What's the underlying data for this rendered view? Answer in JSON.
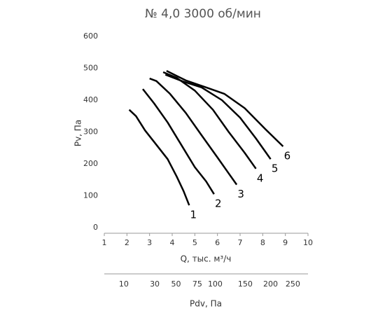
{
  "chart_data": {
    "type": "line",
    "title": "№ 4,0 3000 об/мин",
    "xlabel": "Q, тыс. м³/ч",
    "ylabel": "Pv, Па",
    "x2label": "Pdv, Па",
    "xlim": [
      1,
      10
    ],
    "xticks": [
      1,
      2,
      3,
      4,
      5,
      6,
      7,
      8,
      9,
      10
    ],
    "ylim": [
      0,
      600
    ],
    "yticks": [
      0,
      100,
      200,
      300,
      400,
      500,
      600
    ],
    "x2scale": "sqrt",
    "x2lim": [
      2.9,
      287
    ],
    "x2ticks": [
      10,
      30,
      50,
      75,
      100,
      150,
      200,
      250
    ],
    "grid": false,
    "series": [
      {
        "name": "1",
        "color": "#000000",
        "x": [
          2.1,
          2.4,
          2.8,
          3.3,
          3.8,
          4.2,
          4.5,
          4.75
        ],
        "values": [
          370,
          350,
          305,
          260,
          215,
          160,
          115,
          70
        ]
      },
      {
        "name": "2",
        "color": "#000000",
        "x": [
          2.7,
          3.2,
          3.8,
          4.4,
          5.0,
          5.5,
          5.85
        ],
        "values": [
          435,
          390,
          330,
          260,
          190,
          145,
          105
        ]
      },
      {
        "name": "3",
        "color": "#000000",
        "x": [
          3.0,
          3.3,
          3.9,
          4.6,
          5.3,
          6.0,
          6.5,
          6.85
        ],
        "values": [
          468,
          460,
          420,
          360,
          290,
          220,
          170,
          135
        ]
      },
      {
        "name": "4",
        "color": "#000000",
        "x": [
          3.6,
          4.2,
          5.0,
          5.8,
          6.5,
          7.2,
          7.7
        ],
        "values": [
          488,
          470,
          430,
          370,
          300,
          235,
          185
        ]
      },
      {
        "name": "5",
        "color": "#000000",
        "x": [
          3.7,
          4.5,
          5.3,
          6.2,
          7.0,
          7.7,
          8.35
        ],
        "values": [
          480,
          458,
          440,
          400,
          345,
          280,
          215
        ]
      },
      {
        "name": "6",
        "color": "#000000",
        "x": [
          3.75,
          4.6,
          5.5,
          6.3,
          7.2,
          8.1,
          8.9
        ],
        "values": [
          492,
          462,
          440,
          420,
          375,
          310,
          255
        ]
      }
    ]
  }
}
